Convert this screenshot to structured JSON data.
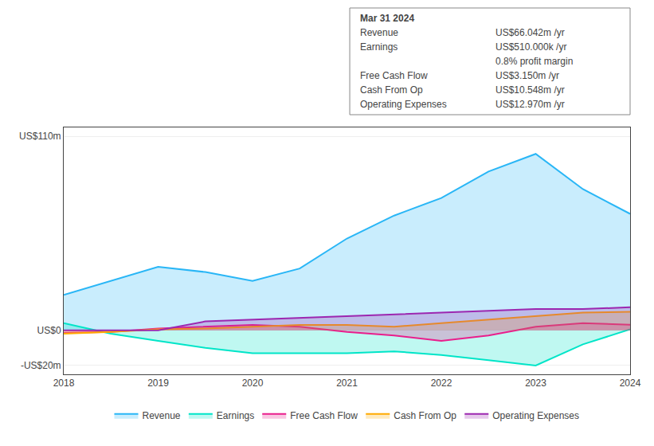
{
  "chart_data": {
    "type": "area",
    "categories": [
      "2018",
      null,
      "2019",
      null,
      "2020",
      null,
      "2021",
      null,
      "2022",
      null,
      "2023",
      null,
      "2024"
    ],
    "series": [
      {
        "name": "Revenue",
        "color": "#29b6f6",
        "values": [
          20,
          28,
          36,
          33,
          28,
          35,
          52,
          65,
          75,
          90,
          100,
          80,
          66
        ]
      },
      {
        "name": "Earnings",
        "color": "#00e5c8",
        "values": [
          4,
          -2,
          -6,
          -10,
          -13,
          -13,
          -13,
          -12,
          -14,
          -17,
          -20,
          -8,
          0.5
        ]
      },
      {
        "name": "Free Cash Flow",
        "color": "#e91e8c",
        "values": [
          -1.5,
          -1,
          1,
          2,
          3,
          2,
          -1,
          -3,
          -6,
          -3,
          2,
          4,
          3.15
        ]
      },
      {
        "name": "Cash From Op",
        "color": "#ffaa00",
        "values": [
          -2,
          -1,
          0.5,
          1,
          2,
          3,
          3,
          2,
          4,
          6,
          8,
          10,
          10.5
        ]
      },
      {
        "name": "Operating Expenses",
        "color": "#9c27b0",
        "values": [
          0,
          0,
          0,
          5,
          6,
          7,
          8,
          9,
          10,
          11,
          12,
          12,
          13
        ]
      }
    ],
    "ylim": [
      -25,
      115
    ],
    "yticks": [
      {
        "value": 110,
        "label": "US$110m"
      },
      {
        "value": 0,
        "label": "US$0"
      },
      {
        "value": -20,
        "label": "-US$20m"
      }
    ],
    "grid": true,
    "legend": "bottom",
    "annotations": [
      [
        "Mar 31 2024"
      ],
      [
        "Revenue",
        "US$66.042m /yr"
      ],
      [
        "Earnings",
        "US$510.000k /yr"
      ],
      [
        "0.8% profit margin"
      ],
      [
        "Free Cash Flow",
        "US$3.150m /yr"
      ],
      [
        "Cash From Op",
        "US$10.548m /yr"
      ],
      [
        "Operating Expenses",
        "US$12.970m /yr"
      ]
    ]
  }
}
